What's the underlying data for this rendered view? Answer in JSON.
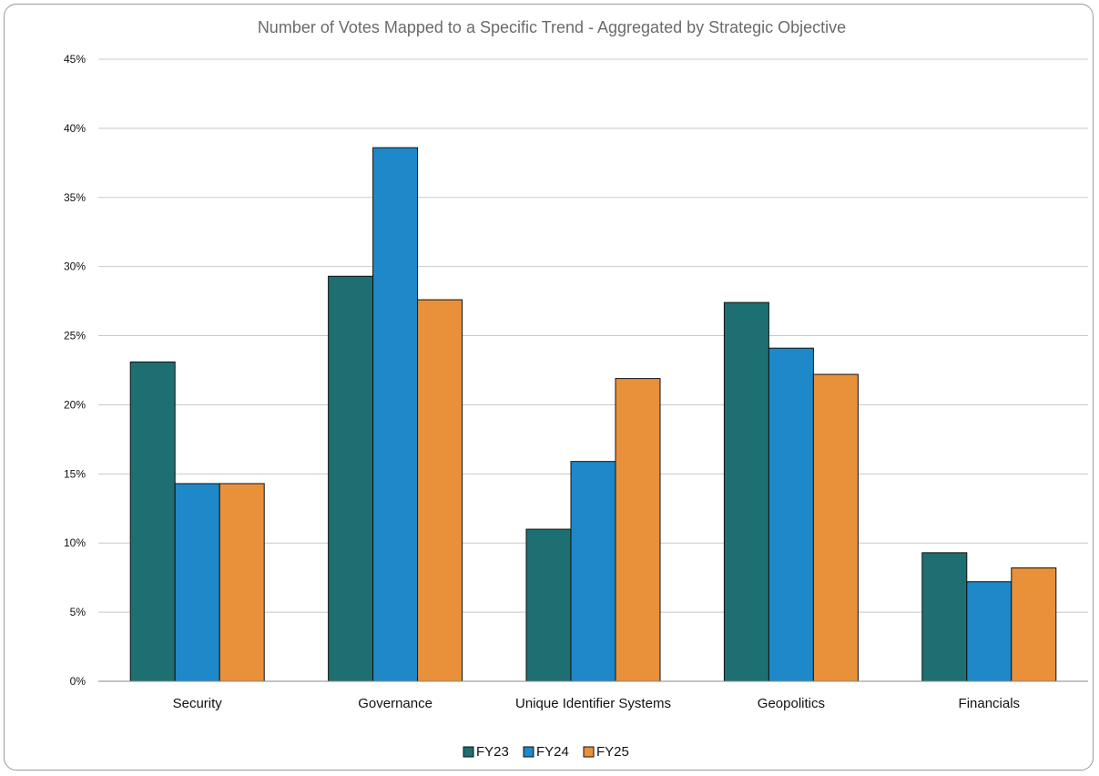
{
  "chart_data": {
    "type": "bar",
    "title": "Number of Votes Mapped to a Specific Trend - Aggregated by Strategic Objective",
    "xlabel": "",
    "ylabel": "",
    "categories": [
      "Security",
      "Governance",
      "Unique Identifier Systems",
      "Geopolitics",
      "Financials"
    ],
    "series": [
      {
        "name": "FY23",
        "color": "#1d6f71",
        "values": [
          23.1,
          29.3,
          11.0,
          27.4,
          9.3
        ]
      },
      {
        "name": "FY24",
        "color": "#1e88c9",
        "values": [
          14.3,
          38.6,
          15.9,
          24.1,
          7.2
        ]
      },
      {
        "name": "FY25",
        "color": "#e8913a",
        "values": [
          14.3,
          27.6,
          21.9,
          22.2,
          8.2
        ]
      }
    ],
    "ylim": [
      0,
      45
    ],
    "yticks": [
      0,
      5,
      10,
      15,
      20,
      25,
      30,
      35,
      40,
      45
    ],
    "ytick_labels": [
      "0%",
      "5%",
      "10%",
      "15%",
      "20%",
      "25%",
      "30%",
      "35%",
      "40%",
      "45%"
    ],
    "grid": true,
    "legend_position": "bottom-center"
  }
}
